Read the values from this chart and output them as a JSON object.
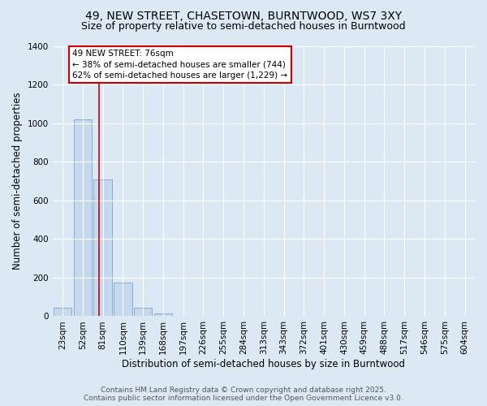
{
  "title": "49, NEW STREET, CHASETOWN, BURNTWOOD, WS7 3XY",
  "subtitle": "Size of property relative to semi-detached houses in Burntwood",
  "xlabel": "Distribution of semi-detached houses by size in Burntwood",
  "ylabel": "Number of semi-detached properties",
  "categories": [
    "23sqm",
    "52sqm",
    "81sqm",
    "110sqm",
    "139sqm",
    "168sqm",
    "197sqm",
    "226sqm",
    "255sqm",
    "284sqm",
    "313sqm",
    "343sqm",
    "372sqm",
    "401sqm",
    "430sqm",
    "459sqm",
    "488sqm",
    "517sqm",
    "546sqm",
    "575sqm",
    "604sqm"
  ],
  "values": [
    42,
    1020,
    710,
    175,
    42,
    13,
    0,
    0,
    0,
    0,
    0,
    0,
    0,
    0,
    0,
    0,
    0,
    0,
    0,
    0,
    0
  ],
  "bar_color": "#c5d8ed",
  "bar_edge_color": "#85aed0",
  "background_color": "#dce9f5",
  "grid_color": "#ffffff",
  "red_line_x": 1.83,
  "annotation_text": "49 NEW STREET: 76sqm\n← 38% of semi-detached houses are smaller (744)\n62% of semi-detached houses are larger (1,229) →",
  "annotation_box_color": "#ffffff",
  "annotation_box_edge_color": "#cc0000",
  "ylim": [
    0,
    1400
  ],
  "yticks": [
    0,
    200,
    400,
    600,
    800,
    1000,
    1200,
    1400
  ],
  "footer_line1": "Contains HM Land Registry data © Crown copyright and database right 2025.",
  "footer_line2": "Contains public sector information licensed under the Open Government Licence v3.0.",
  "title_fontsize": 10,
  "subtitle_fontsize": 9,
  "axis_label_fontsize": 8.5,
  "tick_fontsize": 7.5,
  "annotation_fontsize": 7.5,
  "footer_fontsize": 6.5
}
